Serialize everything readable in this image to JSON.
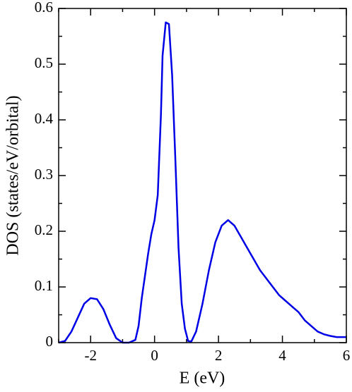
{
  "chart_data": {
    "type": "line",
    "xlabel": "E (eV)",
    "ylabel": "DOS (states/eV/orbital)",
    "color": "#0000e6",
    "x": [
      -3,
      -2.8,
      -2.6,
      -2.4,
      -2.2,
      -2.0,
      -1.8,
      -1.6,
      -1.4,
      -1.2,
      -1.0,
      -0.8,
      -0.6,
      -0.5,
      -0.4,
      -0.3,
      -0.2,
      -0.1,
      0,
      0.1,
      0.2,
      0.25,
      0.35,
      0.45,
      0.55,
      0.65,
      0.75,
      0.85,
      0.95,
      1.05,
      1.15,
      1.3,
      1.5,
      1.7,
      1.9,
      2.1,
      2.3,
      2.5,
      2.7,
      2.9,
      3.1,
      3.3,
      3.5,
      3.7,
      3.9,
      4.1,
      4.3,
      4.5,
      4.7,
      4.9,
      5.1,
      5.3,
      5.5,
      5.7,
      5.9,
      6
    ],
    "values": [
      0,
      0.003,
      0.02,
      0.045,
      0.07,
      0.08,
      0.078,
      0.06,
      0.032,
      0.008,
      0,
      0,
      0.005,
      0.03,
      0.08,
      0.12,
      0.16,
      0.195,
      0.22,
      0.265,
      0.41,
      0.515,
      0.575,
      0.572,
      0.48,
      0.33,
      0.17,
      0.07,
      0.025,
      0.003,
      0.002,
      0.02,
      0.07,
      0.13,
      0.18,
      0.21,
      0.22,
      0.21,
      0.19,
      0.17,
      0.15,
      0.13,
      0.115,
      0.1,
      0.085,
      0.075,
      0.065,
      0.055,
      0.04,
      0.03,
      0.02,
      0.015,
      0.012,
      0.01,
      0.01,
      0.01
    ],
    "xlim": [
      -3,
      6
    ],
    "xticks": [
      -2,
      0,
      2,
      4,
      6
    ],
    "xminorticks": [
      -3,
      -1,
      1,
      3,
      5
    ],
    "ylim": [
      0,
      0.6
    ],
    "yticks": [
      0,
      0.1,
      0.2,
      0.3,
      0.4,
      0.5,
      0.6
    ],
    "yminorticks": [
      0.05,
      0.15,
      0.25,
      0.35,
      0.45,
      0.55
    ]
  }
}
